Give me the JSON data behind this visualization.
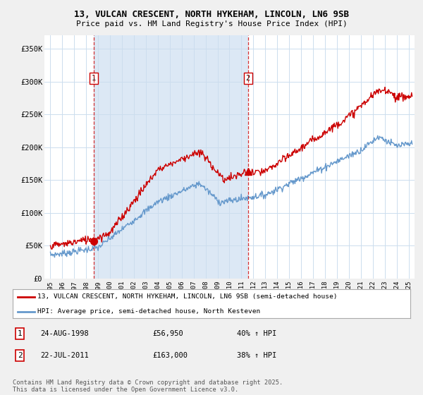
{
  "title_line1": "13, VULCAN CRESCENT, NORTH HYKEHAM, LINCOLN, LN6 9SB",
  "title_line2": "Price paid vs. HM Land Registry's House Price Index (HPI)",
  "yticks": [
    0,
    50000,
    100000,
    150000,
    200000,
    250000,
    300000,
    350000
  ],
  "ytick_labels": [
    "£0",
    "£50K",
    "£100K",
    "£150K",
    "£200K",
    "£250K",
    "£300K",
    "£350K"
  ],
  "xtick_years": [
    1995,
    1996,
    1997,
    1998,
    1999,
    2000,
    2001,
    2002,
    2003,
    2004,
    2005,
    2006,
    2007,
    2008,
    2009,
    2010,
    2011,
    2012,
    2013,
    2014,
    2015,
    2016,
    2017,
    2018,
    2019,
    2020,
    2021,
    2022,
    2023,
    2024,
    2025
  ],
  "property_color": "#cc0000",
  "hpi_color": "#6699cc",
  "fill_color": "#dce8f5",
  "marker1_date": 1998.65,
  "marker1_value": 56950,
  "marker2_date": 2011.55,
  "marker2_value": 163000,
  "legend_property": "13, VULCAN CRESCENT, NORTH HYKEHAM, LINCOLN, LN6 9SB (semi-detached house)",
  "legend_hpi": "HPI: Average price, semi-detached house, North Kesteven",
  "annotation1_date": "24-AUG-1998",
  "annotation1_price": "£56,950",
  "annotation1_hpi": "40% ↑ HPI",
  "annotation2_date": "22-JUL-2011",
  "annotation2_price": "£163,000",
  "annotation2_hpi": "38% ↑ HPI",
  "footer": "Contains HM Land Registry data © Crown copyright and database right 2025.\nThis data is licensed under the Open Government Licence v3.0.",
  "ylim": [
    0,
    370000
  ],
  "xlim_left": 1994.5,
  "xlim_right": 2025.5,
  "background_color": "#f0f0f0",
  "plot_bg_color": "#ffffff",
  "grid_color": "#ccddee"
}
